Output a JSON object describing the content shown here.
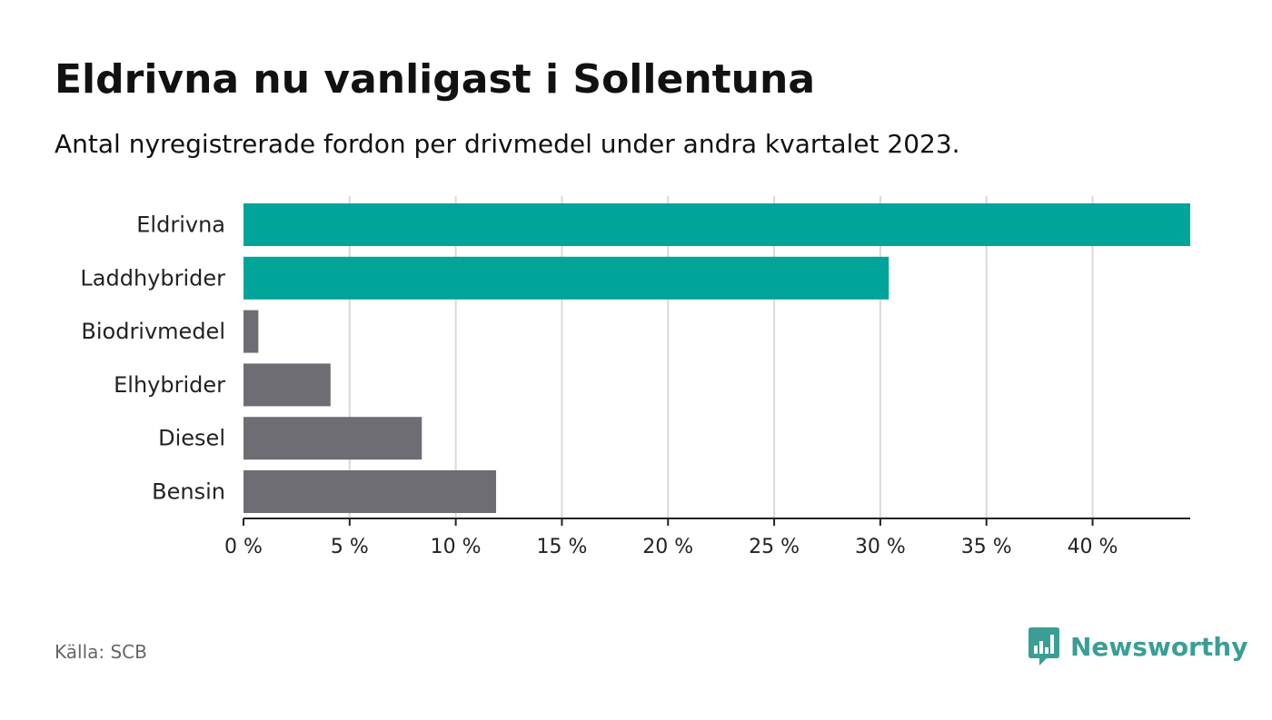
{
  "header": {
    "title": "Eldrivna nu vanligast i Sollentuna",
    "subtitle": "Antal nyregistrerade fordon per drivmedel under andra kvartalet 2023."
  },
  "footer": {
    "source": "Källa: SCB",
    "brand": "Newsworthy",
    "brand_icon": "bar-chart-speech-icon"
  },
  "colors": {
    "highlight": "#00a499",
    "default": "#6e6d73",
    "grid": "#d9d9d9",
    "axis": "#222222",
    "brand": "#3a9e95"
  },
  "chart_data": {
    "type": "bar",
    "orientation": "horizontal",
    "title": "Eldrivna nu vanligast i Sollentuna",
    "subtitle": "Antal nyregistrerade fordon per drivmedel under andra kvartalet 2023.",
    "xlabel": "",
    "ylabel": "",
    "xlim": [
      0,
      44.6
    ],
    "x_ticks": [
      0,
      5,
      10,
      15,
      20,
      25,
      30,
      35,
      40
    ],
    "x_tick_labels": [
      "0 %",
      "5 %",
      "10 %",
      "15 %",
      "20 %",
      "25 %",
      "30 %",
      "35 %",
      "40 %"
    ],
    "grid": true,
    "categories": [
      "Eldrivna",
      "Laddhybrider",
      "Biodrivmedel",
      "Elhybrider",
      "Diesel",
      "Bensin"
    ],
    "values": [
      44.6,
      30.4,
      0.7,
      4.1,
      8.4,
      11.9
    ],
    "highlighted": [
      true,
      true,
      false,
      false,
      false,
      false
    ]
  }
}
